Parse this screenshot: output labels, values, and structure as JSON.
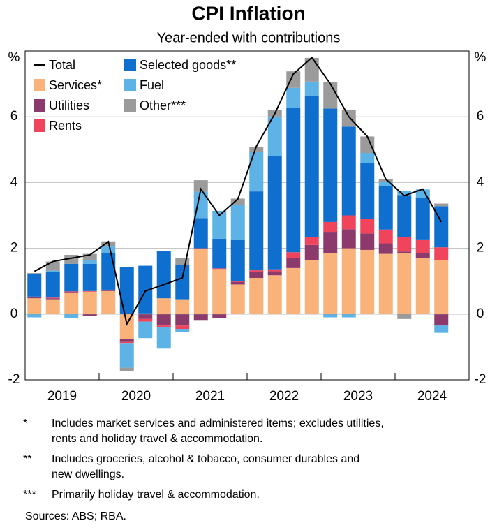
{
  "chart_data": {
    "type": "stacked_bar_line",
    "title": "CPI Inflation",
    "subtitle": "Year-ended with contributions",
    "y_unit": "%",
    "y2_unit": "%",
    "year_labels": [
      "2019",
      "2020",
      "2021",
      "2022",
      "2023",
      "2024"
    ],
    "ylim": [
      -2,
      8
    ],
    "yticks": [
      -2,
      0,
      2,
      4,
      6
    ],
    "y2lim": [
      -2,
      8
    ],
    "y2ticks": [
      -2,
      0,
      2,
      4,
      6
    ],
    "grid": true,
    "series": [
      {
        "name": "Total",
        "color": "#000000",
        "kind": "line",
        "values": [
          1.3,
          1.6,
          1.7,
          1.8,
          2.2,
          -0.3,
          0.7,
          0.9,
          1.1,
          3.8,
          3.0,
          3.5,
          5.1,
          6.1,
          7.3,
          7.8,
          7.0,
          6.0,
          5.4,
          4.1,
          3.6,
          3.8,
          2.8
        ]
      },
      {
        "name": "Services*",
        "color": "#f9b27a",
        "values": [
          0.48,
          0.45,
          0.65,
          0.68,
          0.7,
          -0.75,
          0.02,
          0.48,
          0.45,
          1.98,
          1.37,
          0.9,
          1.1,
          1.18,
          1.4,
          1.65,
          1.85,
          2.0,
          1.95,
          1.83,
          1.85,
          1.7,
          1.65
        ]
      },
      {
        "name": "Utilities",
        "color": "#8b3a6b",
        "values": [
          0.03,
          0.03,
          0.02,
          -0.05,
          0.02,
          -0.1,
          -0.15,
          -0.35,
          -0.35,
          -0.18,
          -0.12,
          0.08,
          0.17,
          0.12,
          0.3,
          0.45,
          0.65,
          0.58,
          0.5,
          0.32,
          0.05,
          0.15,
          -0.35
        ]
      },
      {
        "name": "Rents",
        "color": "#f0435c",
        "values": [
          0.02,
          0.02,
          0.02,
          0.02,
          0.02,
          -0.03,
          -0.08,
          -0.05,
          -0.1,
          0.02,
          0.02,
          0.03,
          0.06,
          0.06,
          0.18,
          0.25,
          0.3,
          0.42,
          0.45,
          0.42,
          0.45,
          0.42,
          0.38
        ]
      },
      {
        "name": "Selected goods**",
        "color": "#0f6fcf",
        "values": [
          0.7,
          0.77,
          0.84,
          0.83,
          1.12,
          1.42,
          1.45,
          1.43,
          1.05,
          0.92,
          0.9,
          1.25,
          2.4,
          3.45,
          4.4,
          4.27,
          3.45,
          2.7,
          1.7,
          1.32,
          1.27,
          1.27,
          1.25
        ]
      },
      {
        "name": "Fuel",
        "color": "#5db3e6",
        "values": [
          -0.1,
          0.05,
          -0.12,
          0.12,
          0.2,
          -0.75,
          -0.5,
          -0.65,
          -0.1,
          0.8,
          0.85,
          1.05,
          1.2,
          1.2,
          0.6,
          0.45,
          -0.1,
          -0.1,
          0.3,
          0.12,
          0.12,
          0.25,
          -0.22
        ]
      },
      {
        "name": "Other***",
        "color": "#9b9b9b",
        "values": [
          0.02,
          0.28,
          0.27,
          0.18,
          0.15,
          -0.1,
          0.0,
          0.0,
          0.2,
          0.35,
          0.0,
          0.2,
          0.15,
          0.2,
          0.5,
          0.72,
          0.8,
          0.5,
          0.5,
          0.1,
          -0.15,
          0.0,
          0.08
        ]
      }
    ],
    "footnotes": [
      {
        "marker": "*",
        "lines": [
          "Includes market services and administered items; excludes utilities,",
          "rents and holiday travel & accommodation."
        ]
      },
      {
        "marker": "**",
        "lines": [
          "Includes groceries, alcohol & tobacco, consumer durables and",
          "new dwellings."
        ]
      },
      {
        "marker": "***",
        "lines": [
          "Primarily holiday travel & accommodation."
        ]
      }
    ],
    "sources": "Sources: ABS; RBA."
  }
}
